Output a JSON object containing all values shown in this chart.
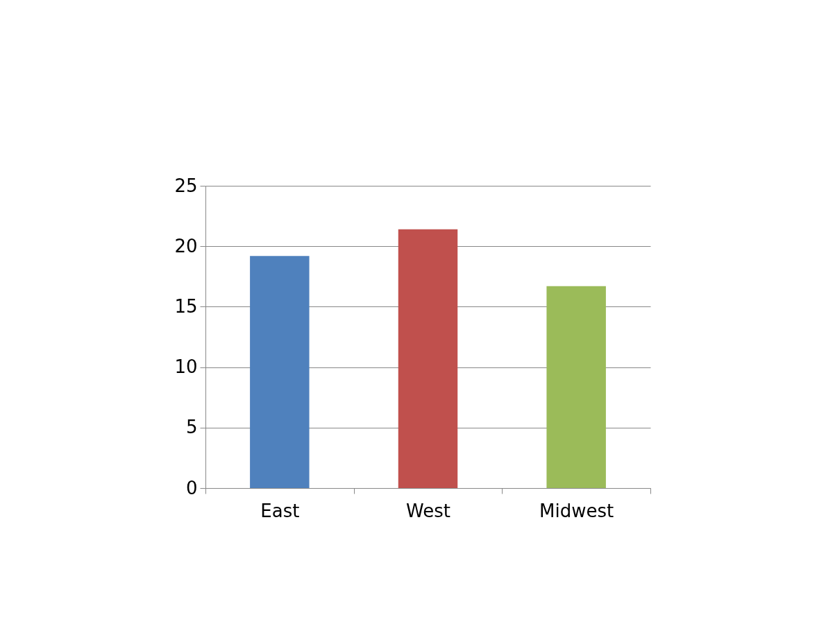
{
  "chart_data": {
    "type": "bar",
    "categories": [
      "East",
      "West",
      "Midwest"
    ],
    "values": [
      19.2,
      21.4,
      16.7
    ],
    "colors": [
      "#4f81bd",
      "#c0504d",
      "#9bbb59"
    ],
    "ylim": [
      0,
      25
    ],
    "yticks": [
      0,
      5,
      10,
      15,
      20,
      25
    ],
    "grid": "y"
  }
}
